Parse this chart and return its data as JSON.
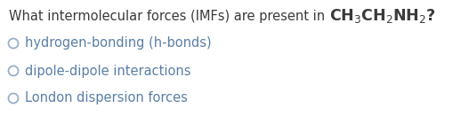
{
  "background_color": "#ffffff",
  "question_prefix": "What intermolecular forces (IMFs) are present in ",
  "question_formula": "CH$_3$CH$_2$NH$_2$?",
  "options": [
    "hydrogen-bonding (h-bonds)",
    "dipole-dipole interactions",
    "London dispersion forces"
  ],
  "text_color": "#5b7fa6",
  "formula_color": "#3a3a3a",
  "question_color": "#3a3a3a",
  "font_size_question": 10.5,
  "font_size_formula": 12.5,
  "font_size_options": 10.5,
  "circle_color": "#9aafc8",
  "option_text_color": "#5b7fa6"
}
